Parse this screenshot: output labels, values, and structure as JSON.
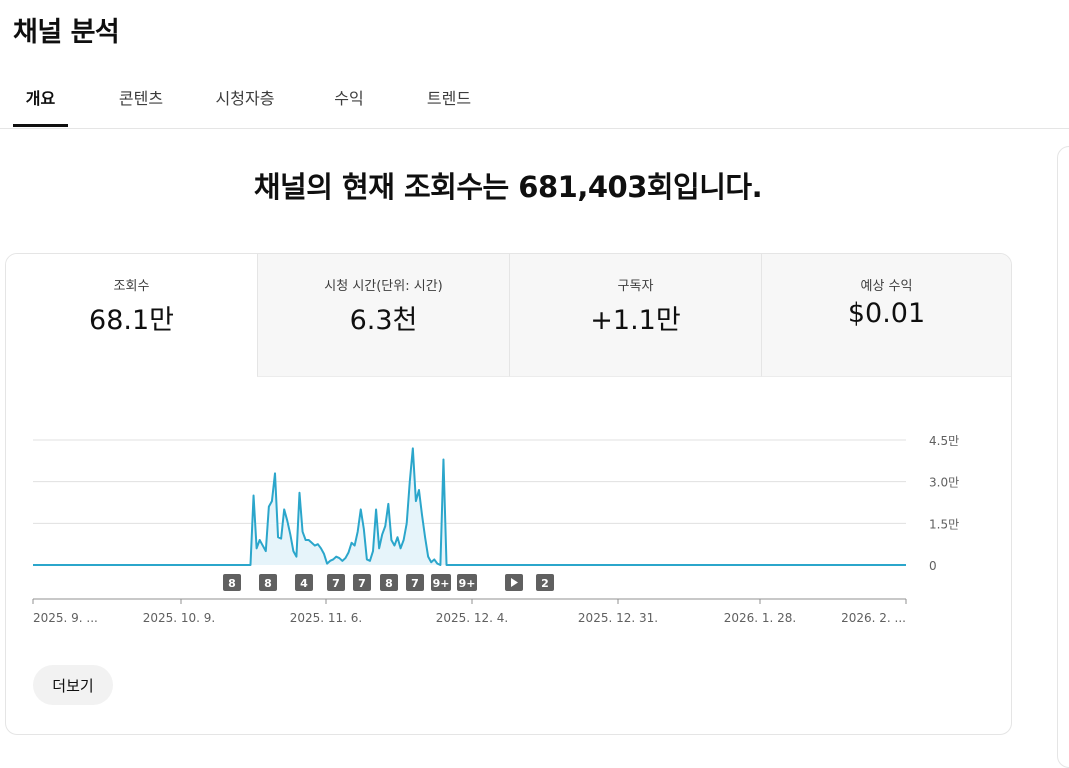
{
  "page": {
    "title": "채널 분석"
  },
  "tabs": [
    {
      "label": "개요",
      "active": true
    },
    {
      "label": "콘텐츠",
      "active": false
    },
    {
      "label": "시청자층",
      "active": false
    },
    {
      "label": "수익",
      "active": false
    },
    {
      "label": "트렌드",
      "active": false
    }
  ],
  "headline": "채널의 현재 조회수는 681,403회입니다.",
  "metrics": [
    {
      "label": "조회수",
      "value": "68.1만",
      "active": true
    },
    {
      "label": "시청 시간(단위: 시간)",
      "value": "6.3천",
      "active": false
    },
    {
      "label": "구독자",
      "value": "+1.1만",
      "active": false
    },
    {
      "label": "예상 수익",
      "value": "$0.01",
      "active": false
    }
  ],
  "more_button": "더보기",
  "colors": {
    "line": "#2ba6cb",
    "fill": "#e6f4fa",
    "badge": "#606060"
  },
  "chart_data": {
    "type": "area",
    "y_ticks": [
      {
        "value": 0,
        "label": "0"
      },
      {
        "value": 15000,
        "label": "1.5만"
      },
      {
        "value": 30000,
        "label": "3.0만"
      },
      {
        "value": 45000,
        "label": "4.5만"
      }
    ],
    "ylim": [
      0,
      45000
    ],
    "x_tick_labels": [
      "2025. 9. ...",
      "2025. 10. 9.",
      "2025. 11. 6.",
      "2025. 12. 4.",
      "2025. 12. 31.",
      "2026. 1. 28.",
      "2026. 2. ..."
    ],
    "series": [
      {
        "values": [
          0,
          0,
          0,
          0,
          0,
          0,
          0,
          0,
          0,
          0,
          0,
          0,
          0,
          0,
          0,
          0,
          0,
          0,
          0,
          0,
          0,
          0,
          0,
          0,
          0,
          0,
          0,
          0,
          0,
          0,
          0,
          0,
          0,
          0,
          0,
          0,
          0,
          0,
          0,
          0,
          0,
          0,
          0,
          0,
          0,
          0,
          0,
          0,
          0,
          0,
          0,
          0,
          0,
          0,
          0,
          0,
          0,
          0,
          0,
          0,
          0,
          0,
          0,
          0,
          0,
          0,
          0,
          0,
          0,
          0,
          0,
          0,
          25000,
          6000,
          9000,
          7000,
          5000,
          21000,
          23000,
          33000,
          10000,
          9500,
          20000,
          16000,
          11000,
          5000,
          3000,
          26000,
          12000,
          9000,
          9000,
          8000,
          7000,
          7500,
          6000,
          4000,
          500,
          1500,
          2000,
          3000,
          2500,
          1500,
          2500,
          4500,
          8000,
          7000,
          12000,
          20000,
          13000,
          2000,
          1500,
          5000,
          20000,
          6000,
          11000,
          14000,
          22000,
          9000,
          7000,
          10000,
          6000,
          9000,
          15000,
          30000,
          42000,
          23000,
          27000,
          18000,
          10000,
          3000,
          1000,
          2000,
          500,
          0,
          38000,
          0,
          0,
          0,
          0,
          0,
          0,
          0,
          0,
          0,
          0,
          0,
          0,
          0,
          0,
          0,
          0,
          0,
          0,
          0,
          0,
          0,
          0,
          0,
          0,
          0,
          0,
          0,
          0,
          0,
          0,
          0,
          0,
          0,
          0,
          0,
          0,
          0,
          0,
          0,
          0,
          0,
          0,
          0,
          0,
          0,
          0,
          0,
          0,
          0,
          0,
          0,
          0,
          0,
          0,
          0,
          0,
          0,
          0,
          0,
          0,
          0,
          0,
          0,
          0,
          0,
          0,
          0,
          0,
          0,
          0,
          0,
          0,
          0,
          0,
          0,
          0,
          0,
          0,
          0,
          0,
          0,
          0,
          0,
          0,
          0,
          0,
          0,
          0,
          0,
          0,
          0,
          0,
          0,
          0,
          0,
          0,
          0,
          0,
          0,
          0,
          0,
          0,
          0,
          0,
          0,
          0,
          0,
          0,
          0,
          0,
          0,
          0,
          0,
          0,
          0,
          0,
          0,
          0,
          0,
          0,
          0,
          0,
          0,
          0,
          0,
          0,
          0,
          0,
          0,
          0,
          0,
          0,
          0,
          0,
          0,
          0,
          0,
          0,
          0,
          0,
          0,
          0,
          0,
          0,
          0,
          0,
          0,
          0,
          0,
          0,
          0
        ]
      }
    ],
    "markers": [
      {
        "label": "8",
        "type": "count"
      },
      {
        "label": "8",
        "type": "count"
      },
      {
        "label": "4",
        "type": "count"
      },
      {
        "label": "7",
        "type": "count"
      },
      {
        "label": "7",
        "type": "count"
      },
      {
        "label": "8",
        "type": "count"
      },
      {
        "label": "7",
        "type": "count"
      },
      {
        "label": "9+",
        "type": "count"
      },
      {
        "label": "9+",
        "type": "count"
      },
      {
        "label": "",
        "type": "play"
      },
      {
        "label": "2",
        "type": "count"
      }
    ],
    "grid": true
  }
}
